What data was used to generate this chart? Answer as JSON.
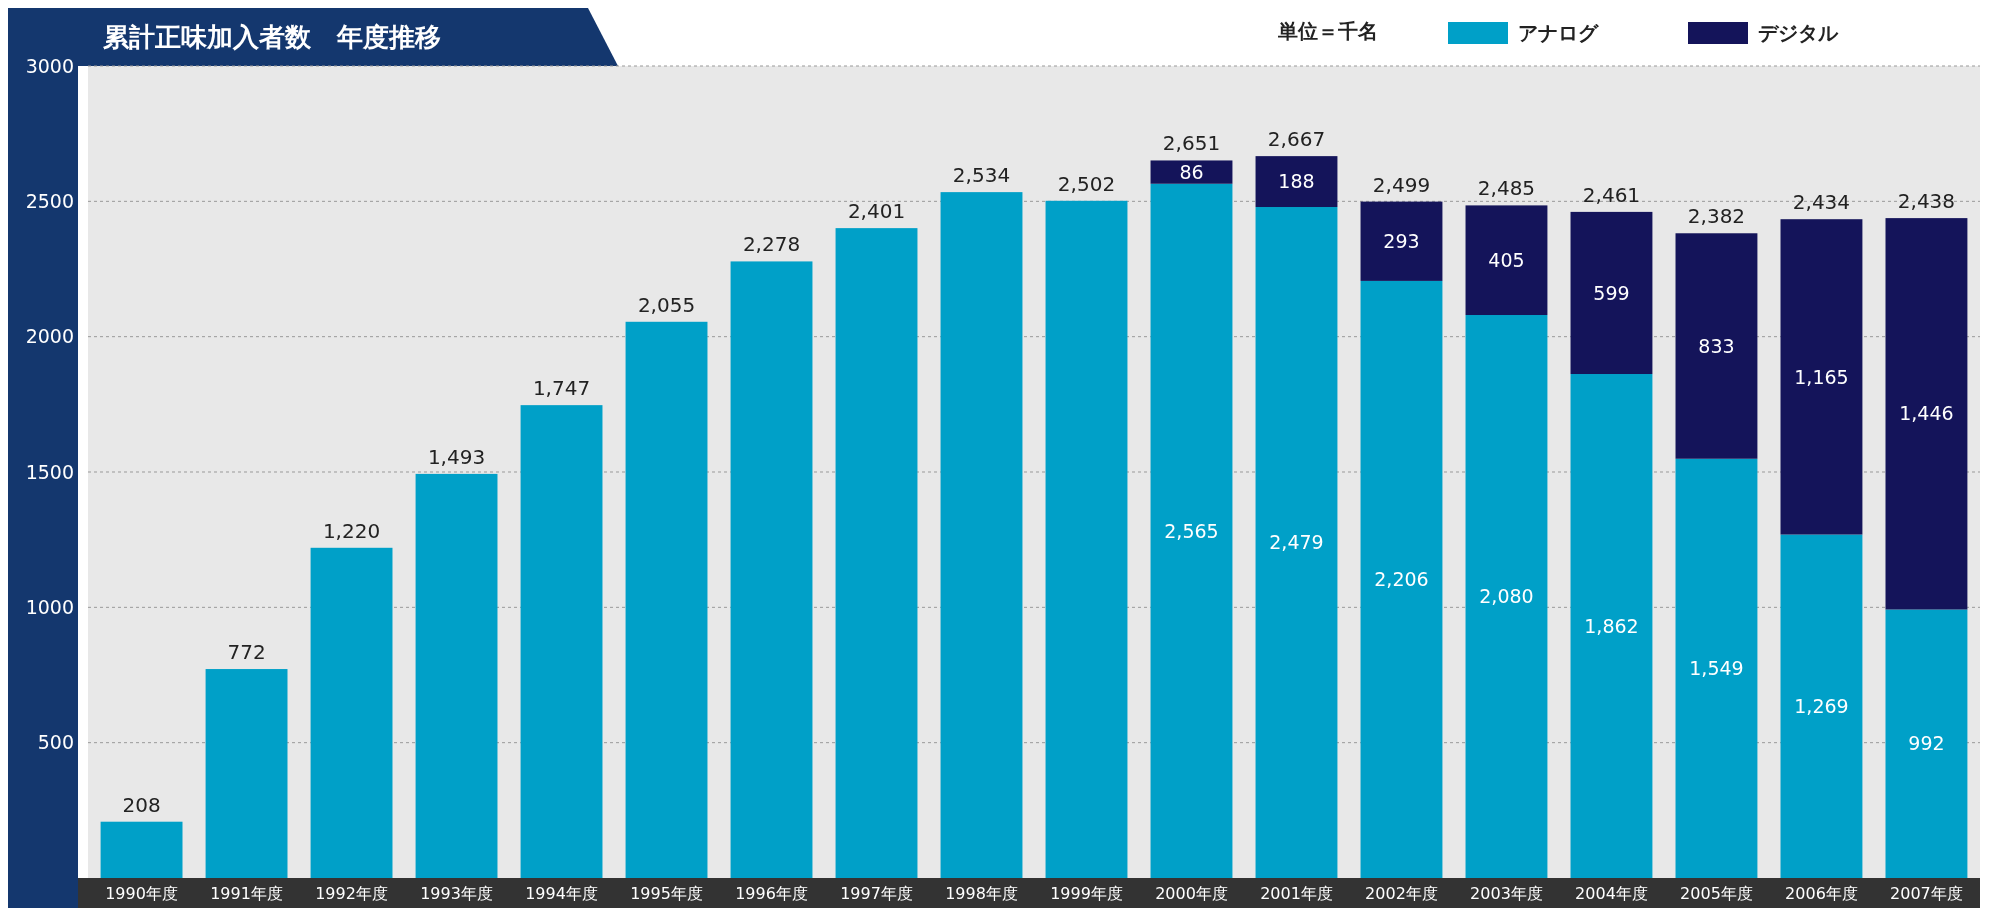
{
  "chart_data": {
    "type": "bar",
    "title": "累計正味加入者数　年度推移",
    "legend_title": "単位＝千名",
    "categories": [
      "1990年度",
      "1991年度",
      "1992年度",
      "1993年度",
      "1994年度",
      "1995年度",
      "1996年度",
      "1997年度",
      "1998年度",
      "1999年度",
      "2000年度",
      "2001年度",
      "2002年度",
      "2003年度",
      "2004年度",
      "2005年度",
      "2006年度",
      "2007年度"
    ],
    "stacked": true,
    "series": [
      {
        "name": "アナログ",
        "color": "#00a0c8",
        "values": [
          208,
          772,
          1220,
          1493,
          1747,
          2055,
          2278,
          2401,
          2534,
          2502,
          2565,
          2479,
          2206,
          2080,
          1862,
          1549,
          1269,
          992
        ],
        "value_labels": [
          null,
          null,
          null,
          null,
          null,
          null,
          null,
          null,
          null,
          null,
          "2,565",
          "2,479",
          "2,206",
          "2,080",
          "1,862",
          "1,549",
          "1,269",
          "992"
        ]
      },
      {
        "name": "デジタル",
        "color": "#14145a",
        "values": [
          null,
          null,
          null,
          null,
          null,
          null,
          null,
          null,
          null,
          null,
          86,
          188,
          293,
          405,
          599,
          833,
          1165,
          1446
        ],
        "value_labels": [
          null,
          null,
          null,
          null,
          null,
          null,
          null,
          null,
          null,
          null,
          "86",
          "188",
          "293",
          "405",
          "599",
          "833",
          "1,165",
          "1,446"
        ]
      }
    ],
    "totals": [
      "208",
      "772",
      "1,220",
      "1,493",
      "1,747",
      "2,055",
      "2,278",
      "2,401",
      "2,534",
      "2,502",
      "2,651",
      "2,667",
      "2,499",
      "2,485",
      "2,461",
      "2,382",
      "2,434",
      "2,438"
    ],
    "ylim": [
      0,
      3000
    ],
    "yticks": [
      500,
      1000,
      1500,
      2000,
      2500,
      3000
    ],
    "grid": "y",
    "legend": "top right"
  }
}
